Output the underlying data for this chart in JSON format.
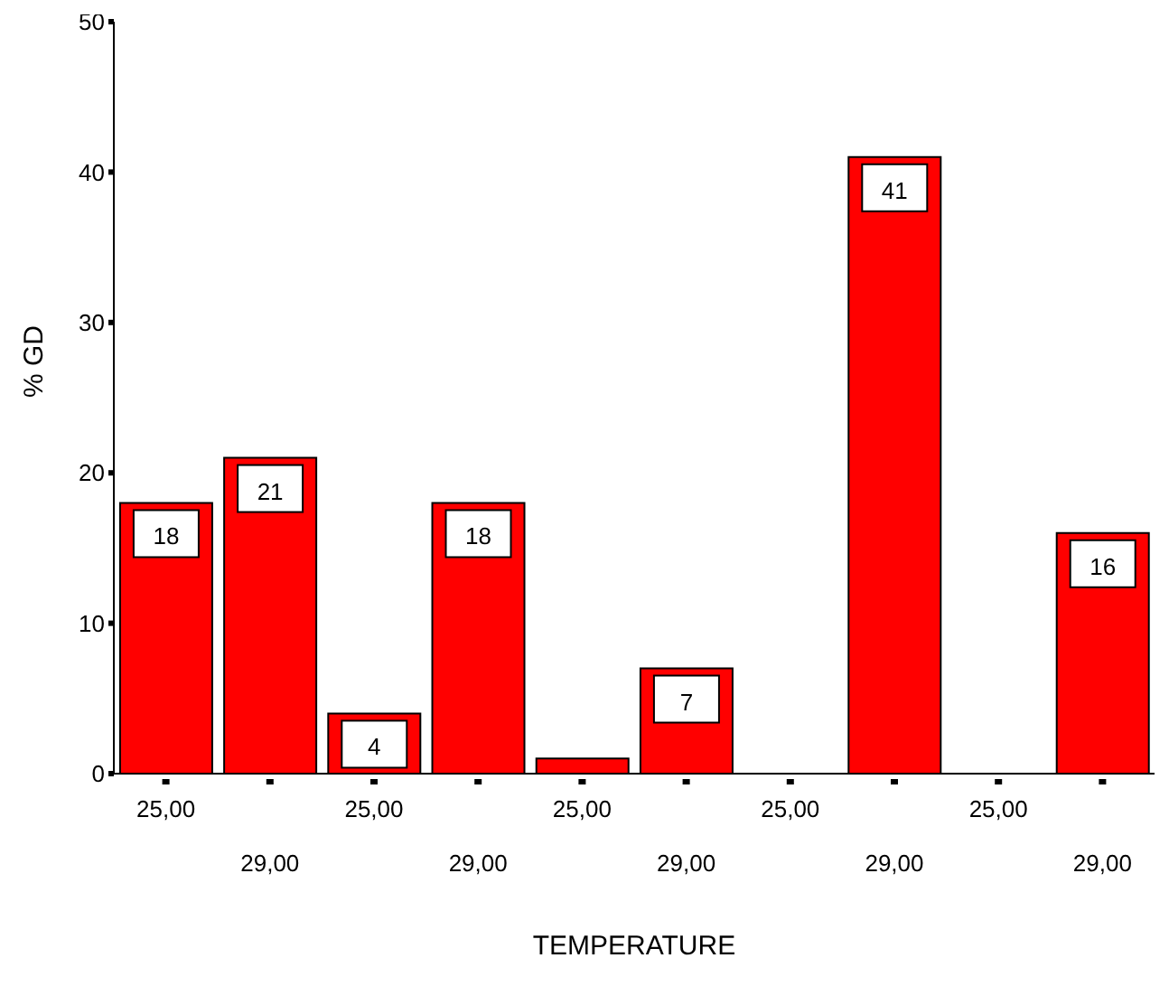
{
  "chart_data": {
    "type": "bar",
    "xlabel": "TEMPERATURE",
    "ylabel": "% GD",
    "categories": [
      "25,00",
      "29,00",
      "25,00",
      "29,00",
      "25,00",
      "29,00",
      "25,00",
      "29,00",
      "25,00",
      "29,00"
    ],
    "values": [
      18,
      21,
      4,
      18,
      1,
      7,
      0,
      41,
      0,
      16
    ],
    "value_labels": [
      "18",
      "21",
      "4",
      "18",
      null,
      "7",
      null,
      "41",
      null,
      "16"
    ],
    "color": "#ff0000",
    "ylim": [
      0,
      50
    ],
    "yticks": [
      0,
      10,
      20,
      30,
      40,
      50
    ],
    "grid": false,
    "legend": false
  }
}
